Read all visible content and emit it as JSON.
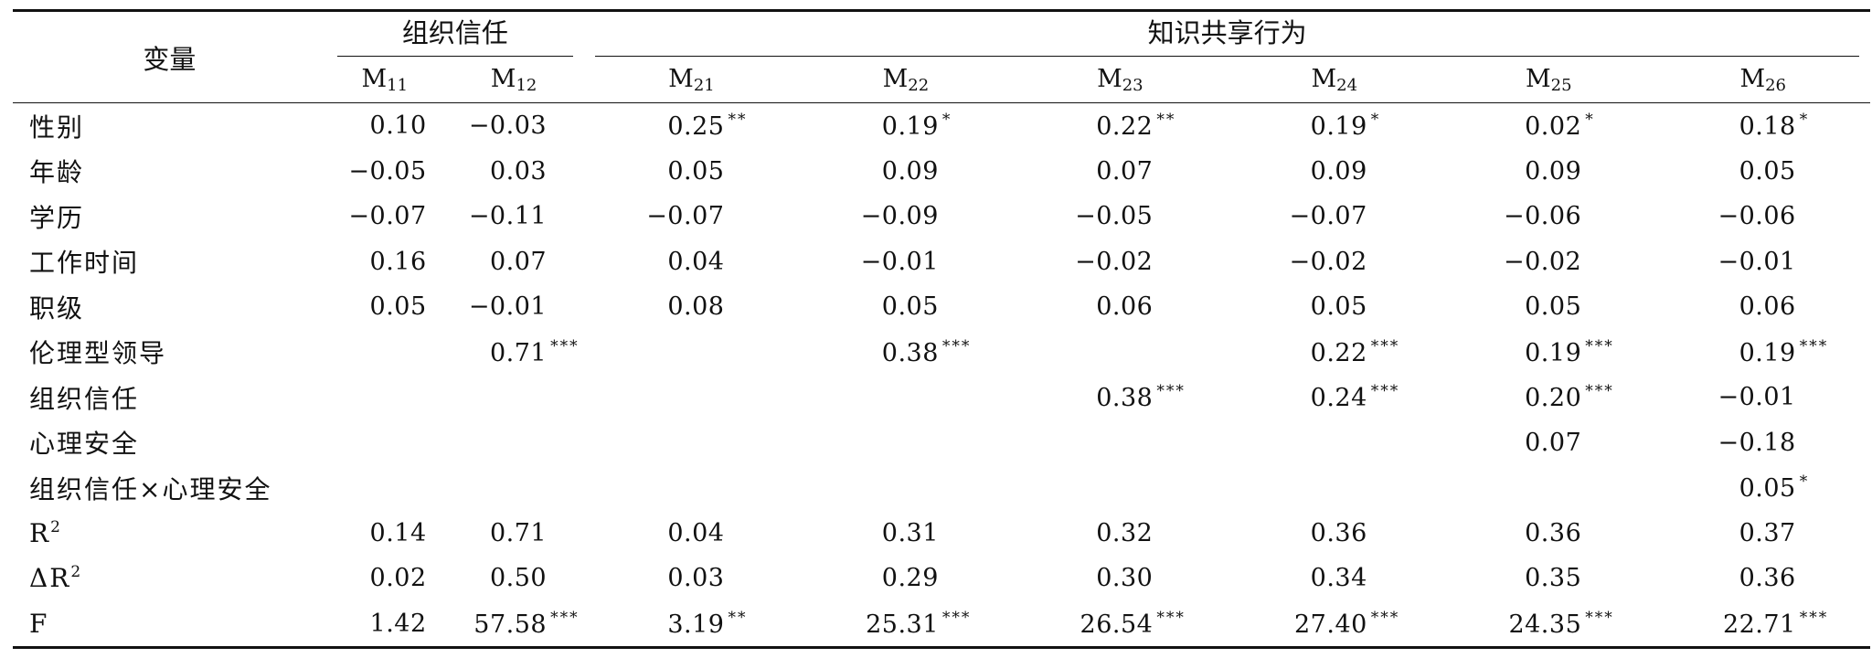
{
  "table": {
    "header_var": "变量",
    "group1": "组织信任",
    "group2": "知识共享行为",
    "models": [
      {
        "base": "M",
        "sub": "11"
      },
      {
        "base": "M",
        "sub": "12"
      },
      {
        "base": "M",
        "sub": "21"
      },
      {
        "base": "M",
        "sub": "22"
      },
      {
        "base": "M",
        "sub": "23"
      },
      {
        "base": "M",
        "sub": "24"
      },
      {
        "base": "M",
        "sub": "25"
      },
      {
        "base": "M",
        "sub": "26"
      }
    ],
    "rows": [
      {
        "label": "性别",
        "sup": "",
        "cells": [
          {
            "v": "0.10",
            "s": ""
          },
          {
            "v": "−0.03",
            "s": ""
          },
          {
            "v": "0.25",
            "s": "**"
          },
          {
            "v": "0.19",
            "s": "*"
          },
          {
            "v": "0.22",
            "s": "**"
          },
          {
            "v": "0.19",
            "s": "*"
          },
          {
            "v": "0.02",
            "s": "*"
          },
          {
            "v": "0.18",
            "s": "*"
          }
        ]
      },
      {
        "label": "年龄",
        "sup": "",
        "cells": [
          {
            "v": "−0.05",
            "s": ""
          },
          {
            "v": "0.03",
            "s": ""
          },
          {
            "v": "0.05",
            "s": ""
          },
          {
            "v": "0.09",
            "s": ""
          },
          {
            "v": "0.07",
            "s": ""
          },
          {
            "v": "0.09",
            "s": ""
          },
          {
            "v": "0.09",
            "s": ""
          },
          {
            "v": "0.05",
            "s": ""
          }
        ]
      },
      {
        "label": "学历",
        "sup": "",
        "cells": [
          {
            "v": "−0.07",
            "s": ""
          },
          {
            "v": "−0.11",
            "s": ""
          },
          {
            "v": "−0.07",
            "s": ""
          },
          {
            "v": "−0.09",
            "s": ""
          },
          {
            "v": "−0.05",
            "s": ""
          },
          {
            "v": "−0.07",
            "s": ""
          },
          {
            "v": "−0.06",
            "s": ""
          },
          {
            "v": "−0.06",
            "s": ""
          }
        ]
      },
      {
        "label": "工作时间",
        "sup": "",
        "cells": [
          {
            "v": "0.16",
            "s": ""
          },
          {
            "v": "0.07",
            "s": ""
          },
          {
            "v": "0.04",
            "s": ""
          },
          {
            "v": "−0.01",
            "s": ""
          },
          {
            "v": "−0.02",
            "s": ""
          },
          {
            "v": "−0.02",
            "s": ""
          },
          {
            "v": "−0.02",
            "s": ""
          },
          {
            "v": "−0.01",
            "s": ""
          }
        ]
      },
      {
        "label": "职级",
        "sup": "",
        "cells": [
          {
            "v": "0.05",
            "s": ""
          },
          {
            "v": "−0.01",
            "s": ""
          },
          {
            "v": "0.08",
            "s": ""
          },
          {
            "v": "0.05",
            "s": ""
          },
          {
            "v": "0.06",
            "s": ""
          },
          {
            "v": "0.05",
            "s": ""
          },
          {
            "v": "0.05",
            "s": ""
          },
          {
            "v": "0.06",
            "s": ""
          }
        ]
      },
      {
        "label": "伦理型领导",
        "sup": "",
        "cells": [
          {
            "v": "",
            "s": ""
          },
          {
            "v": "0.71",
            "s": "***"
          },
          {
            "v": "",
            "s": ""
          },
          {
            "v": "0.38",
            "s": "***"
          },
          {
            "v": "",
            "s": ""
          },
          {
            "v": "0.22",
            "s": "***"
          },
          {
            "v": "0.19",
            "s": "***"
          },
          {
            "v": "0.19",
            "s": "***"
          }
        ]
      },
      {
        "label": "组织信任",
        "sup": "",
        "cells": [
          {
            "v": "",
            "s": ""
          },
          {
            "v": "",
            "s": ""
          },
          {
            "v": "",
            "s": ""
          },
          {
            "v": "",
            "s": ""
          },
          {
            "v": "0.38",
            "s": "***"
          },
          {
            "v": "0.24",
            "s": "***"
          },
          {
            "v": "0.20",
            "s": "***"
          },
          {
            "v": "−0.01",
            "s": ""
          }
        ]
      },
      {
        "label": "心理安全",
        "sup": "",
        "cells": [
          {
            "v": "",
            "s": ""
          },
          {
            "v": "",
            "s": ""
          },
          {
            "v": "",
            "s": ""
          },
          {
            "v": "",
            "s": ""
          },
          {
            "v": "",
            "s": ""
          },
          {
            "v": "",
            "s": ""
          },
          {
            "v": "0.07",
            "s": ""
          },
          {
            "v": "−0.18",
            "s": ""
          }
        ]
      },
      {
        "label": "组织信任×心理安全",
        "sup": "",
        "cells": [
          {
            "v": "",
            "s": ""
          },
          {
            "v": "",
            "s": ""
          },
          {
            "v": "",
            "s": ""
          },
          {
            "v": "",
            "s": ""
          },
          {
            "v": "",
            "s": ""
          },
          {
            "v": "",
            "s": ""
          },
          {
            "v": "",
            "s": ""
          },
          {
            "v": "0.05",
            "s": "*"
          }
        ]
      },
      {
        "label": "R",
        "sup": "2",
        "cells": [
          {
            "v": "0.14",
            "s": ""
          },
          {
            "v": "0.71",
            "s": ""
          },
          {
            "v": "0.04",
            "s": ""
          },
          {
            "v": "0.31",
            "s": ""
          },
          {
            "v": "0.32",
            "s": ""
          },
          {
            "v": "0.36",
            "s": ""
          },
          {
            "v": "0.36",
            "s": ""
          },
          {
            "v": "0.37",
            "s": ""
          }
        ]
      },
      {
        "label": "ΔR",
        "sup": "2",
        "cells": [
          {
            "v": "0.02",
            "s": ""
          },
          {
            "v": "0.50",
            "s": ""
          },
          {
            "v": "0.03",
            "s": ""
          },
          {
            "v": "0.29",
            "s": ""
          },
          {
            "v": "0.30",
            "s": ""
          },
          {
            "v": "0.34",
            "s": ""
          },
          {
            "v": "0.35",
            "s": ""
          },
          {
            "v": "0.36",
            "s": ""
          }
        ]
      },
      {
        "label": "F",
        "sup": "",
        "cells": [
          {
            "v": "1.42",
            "s": ""
          },
          {
            "v": "57.58",
            "s": "***"
          },
          {
            "v": "3.19",
            "s": "**"
          },
          {
            "v": "25.31",
            "s": "***"
          },
          {
            "v": "26.54",
            "s": "***"
          },
          {
            "v": "27.40",
            "s": "***"
          },
          {
            "v": "24.35",
            "s": "***"
          },
          {
            "v": "22.71",
            "s": "***"
          }
        ]
      }
    ]
  }
}
